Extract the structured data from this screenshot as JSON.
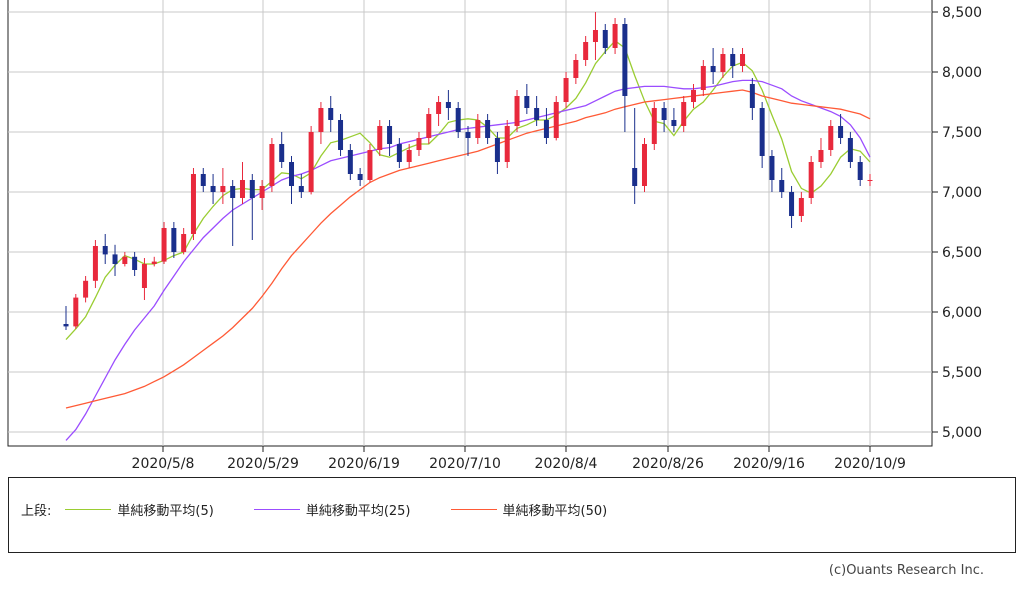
{
  "chart_data": {
    "type": "candlestick",
    "y_axis_position": "right",
    "y_ticks": [
      "8,500",
      "8,000",
      "7,500",
      "7,000",
      "6,500",
      "6,000",
      "5,500",
      "5,000"
    ],
    "y_tick_values": [
      8500,
      8000,
      7500,
      7000,
      6500,
      6000,
      5500,
      5000
    ],
    "ylim": [
      4920,
      8550
    ],
    "x_ticks": [
      "2020/5/8",
      "2020/5/29",
      "2020/6/19",
      "2020/7/10",
      "2020/8/4",
      "2020/8/26",
      "2020/9/16",
      "2020/10/9"
    ],
    "grid": true,
    "colors": {
      "up": "#e8293c",
      "down": "#1a2f8c",
      "ma5": "#9acd32",
      "ma25": "#9b4dff",
      "ma50": "#ff5a36",
      "grid": "#c8c8c8"
    },
    "candles": [
      [
        5900,
        6050,
        5850,
        5880
      ],
      [
        5880,
        6150,
        5860,
        6120
      ],
      [
        6120,
        6300,
        6080,
        6260
      ],
      [
        6260,
        6600,
        6200,
        6550
      ],
      [
        6550,
        6650,
        6400,
        6480
      ],
      [
        6480,
        6560,
        6300,
        6400
      ],
      [
        6400,
        6500,
        6380,
        6460
      ],
      [
        6460,
        6500,
        6300,
        6350
      ],
      [
        6200,
        6450,
        6100,
        6400
      ],
      [
        6400,
        6460,
        6380,
        6420
      ],
      [
        6420,
        6750,
        6400,
        6700
      ],
      [
        6700,
        6750,
        6450,
        6500
      ],
      [
        6500,
        6700,
        6480,
        6650
      ],
      [
        6650,
        7200,
        6600,
        7150
      ],
      [
        7150,
        7200,
        7000,
        7050
      ],
      [
        7050,
        7150,
        6900,
        7000
      ],
      [
        7000,
        7200,
        6900,
        7050
      ],
      [
        7050,
        7100,
        6550,
        6950
      ],
      [
        6950,
        7250,
        6900,
        7100
      ],
      [
        7100,
        7150,
        6600,
        6950
      ],
      [
        6950,
        7100,
        6850,
        7050
      ],
      [
        7050,
        7450,
        7000,
        7400
      ],
      [
        7400,
        7500,
        7200,
        7250
      ],
      [
        7250,
        7300,
        6900,
        7050
      ],
      [
        7050,
        7150,
        6950,
        7000
      ],
      [
        7000,
        7550,
        6980,
        7500
      ],
      [
        7500,
        7750,
        7400,
        7700
      ],
      [
        7700,
        7800,
        7500,
        7600
      ],
      [
        7600,
        7650,
        7300,
        7350
      ],
      [
        7350,
        7400,
        7100,
        7150
      ],
      [
        7150,
        7200,
        7050,
        7100
      ],
      [
        7100,
        7400,
        7080,
        7350
      ],
      [
        7350,
        7600,
        7300,
        7550
      ],
      [
        7550,
        7600,
        7300,
        7400
      ],
      [
        7400,
        7450,
        7200,
        7250
      ],
      [
        7250,
        7400,
        7200,
        7350
      ],
      [
        7350,
        7500,
        7300,
        7450
      ],
      [
        7450,
        7700,
        7400,
        7650
      ],
      [
        7650,
        7800,
        7550,
        7750
      ],
      [
        7750,
        7850,
        7600,
        7700
      ],
      [
        7700,
        7750,
        7450,
        7500
      ],
      [
        7500,
        7550,
        7300,
        7450
      ],
      [
        7450,
        7650,
        7400,
        7600
      ],
      [
        7600,
        7650,
        7400,
        7450
      ],
      [
        7450,
        7500,
        7150,
        7250
      ],
      [
        7250,
        7600,
        7200,
        7550
      ],
      [
        7550,
        7850,
        7500,
        7800
      ],
      [
        7800,
        7900,
        7650,
        7700
      ],
      [
        7700,
        7800,
        7550,
        7600
      ],
      [
        7600,
        7700,
        7400,
        7450
      ],
      [
        7450,
        7800,
        7430,
        7750
      ],
      [
        7750,
        8000,
        7700,
        7950
      ],
      [
        7950,
        8150,
        7900,
        8100
      ],
      [
        8100,
        8300,
        8050,
        8250
      ],
      [
        8250,
        8500,
        8100,
        8350
      ],
      [
        8350,
        8400,
        8150,
        8200
      ],
      [
        8200,
        8450,
        8150,
        8400
      ],
      [
        8400,
        8450,
        7500,
        7800
      ],
      [
        7200,
        7700,
        6900,
        7050
      ],
      [
        7050,
        7450,
        7000,
        7400
      ],
      [
        7400,
        7750,
        7350,
        7700
      ],
      [
        7700,
        7750,
        7500,
        7600
      ],
      [
        7600,
        7700,
        7500,
        7550
      ],
      [
        7550,
        7800,
        7500,
        7750
      ],
      [
        7750,
        7900,
        7700,
        7850
      ],
      [
        7850,
        8100,
        7800,
        8050
      ],
      [
        8050,
        8200,
        7900,
        8000
      ],
      [
        8000,
        8200,
        7950,
        8150
      ],
      [
        8150,
        8200,
        7950,
        8050
      ],
      [
        8050,
        8200,
        8000,
        8150
      ],
      [
        7900,
        7950,
        7600,
        7700
      ],
      [
        7700,
        7750,
        7200,
        7300
      ],
      [
        7300,
        7350,
        7000,
        7100
      ],
      [
        7100,
        7200,
        6950,
        7000
      ],
      [
        7000,
        7050,
        6700,
        6800
      ],
      [
        6800,
        7000,
        6750,
        6950
      ],
      [
        6950,
        7300,
        6900,
        7250
      ],
      [
        7250,
        7450,
        7200,
        7350
      ],
      [
        7350,
        7600,
        7300,
        7550
      ],
      [
        7550,
        7650,
        7400,
        7450
      ],
      [
        7450,
        7500,
        7200,
        7250
      ],
      [
        7250,
        7300,
        7050,
        7100
      ],
      [
        7100,
        7150,
        7050,
        7100
      ]
    ],
    "series": [
      {
        "name": "単純移動平均(5)",
        "values": [
          5770,
          5860,
          5960,
          6120,
          6290,
          6390,
          6470,
          6440,
          6400,
          6400,
          6430,
          6470,
          6500,
          6650,
          6780,
          6880,
          6970,
          7020,
          7030,
          7020,
          7020,
          7090,
          7160,
          7150,
          7110,
          7160,
          7300,
          7410,
          7430,
          7460,
          7490,
          7410,
          7310,
          7290,
          7330,
          7370,
          7400,
          7400,
          7480,
          7580,
          7600,
          7610,
          7600,
          7540,
          7450,
          7450,
          7530,
          7560,
          7600,
          7600,
          7640,
          7700,
          7780,
          7910,
          8070,
          8170,
          8260,
          8200,
          7970,
          7760,
          7590,
          7570,
          7470,
          7590,
          7690,
          7750,
          7850,
          7960,
          8050,
          8080,
          8010,
          7850,
          7640,
          7440,
          7170,
          7030,
          6990,
          7050,
          7150,
          7290,
          7360,
          7340,
          7250
        ]
      },
      {
        "name": "単純移動平均(25)",
        "values": [
          4930,
          5020,
          5150,
          5300,
          5450,
          5600,
          5730,
          5850,
          5950,
          6050,
          6180,
          6300,
          6420,
          6520,
          6620,
          6700,
          6780,
          6850,
          6900,
          6950,
          7000,
          7050,
          7100,
          7130,
          7150,
          7180,
          7220,
          7260,
          7280,
          7300,
          7320,
          7340,
          7360,
          7370,
          7400,
          7420,
          7440,
          7460,
          7480,
          7500,
          7520,
          7530,
          7540,
          7550,
          7560,
          7570,
          7580,
          7600,
          7620,
          7640,
          7660,
          7680,
          7700,
          7720,
          7760,
          7800,
          7840,
          7860,
          7870,
          7880,
          7880,
          7880,
          7870,
          7860,
          7860,
          7870,
          7880,
          7900,
          7920,
          7930,
          7930,
          7920,
          7890,
          7860,
          7800,
          7760,
          7730,
          7700,
          7670,
          7630,
          7560,
          7450,
          7290
        ]
      },
      {
        "name": "単純移動平均(50)",
        "values": [
          5200,
          5220,
          5240,
          5260,
          5280,
          5300,
          5320,
          5350,
          5380,
          5420,
          5460,
          5510,
          5560,
          5620,
          5680,
          5740,
          5800,
          5870,
          5950,
          6030,
          6130,
          6240,
          6360,
          6470,
          6560,
          6650,
          6740,
          6820,
          6890,
          6960,
          7020,
          7080,
          7120,
          7150,
          7180,
          7200,
          7220,
          7240,
          7260,
          7280,
          7300,
          7320,
          7340,
          7370,
          7400,
          7430,
          7460,
          7490,
          7510,
          7530,
          7550,
          7570,
          7590,
          7620,
          7640,
          7660,
          7690,
          7710,
          7730,
          7750,
          7760,
          7770,
          7780,
          7790,
          7800,
          7810,
          7820,
          7830,
          7840,
          7850,
          7830,
          7800,
          7780,
          7760,
          7740,
          7730,
          7720,
          7710,
          7700,
          7690,
          7670,
          7650,
          7610
        ]
      }
    ]
  },
  "legend": {
    "section_label": "上段:",
    "items": [
      {
        "label": "単純移動平均(5)",
        "color": "#9acd32"
      },
      {
        "label": "単純移動平均(25)",
        "color": "#9b4dff"
      },
      {
        "label": "単純移動平均(50)",
        "color": "#ff5a36"
      }
    ]
  },
  "credit": "(c)Ouants Research Inc."
}
